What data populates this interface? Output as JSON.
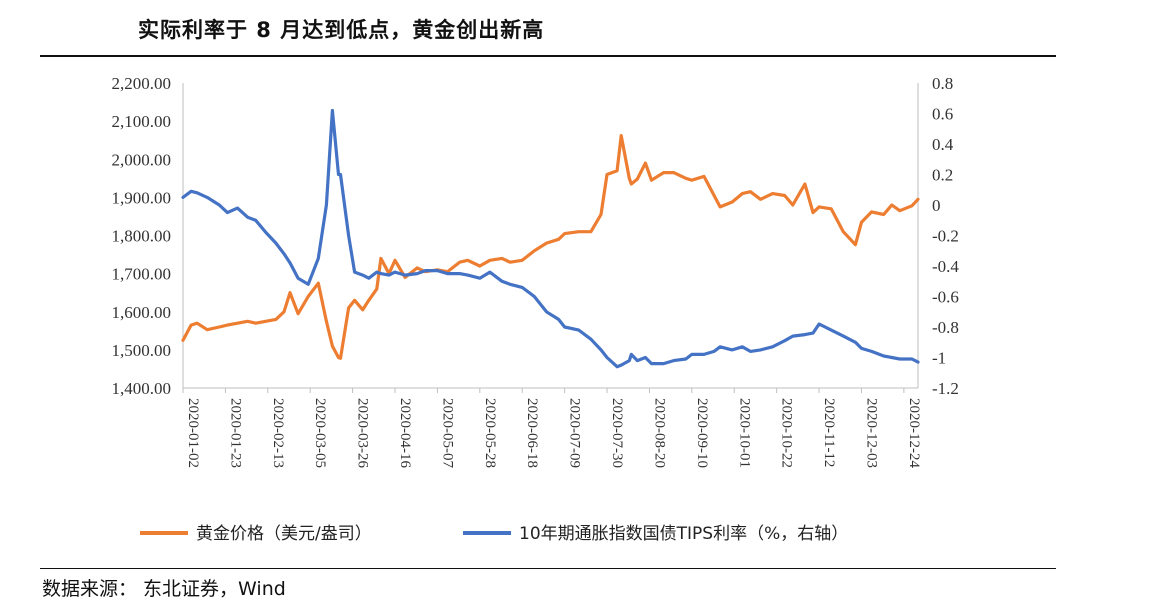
{
  "title": "实际利率于 8 月达到低点，黄金创出新高",
  "source": "数据来源： 东北证券，Wind",
  "chart_data": {
    "type": "line",
    "title": "实际利率于 8 月达到低点，黄金创出新高",
    "grid": false,
    "legend_position": "bottom",
    "x_ticks": [
      "2020-01-02",
      "2020-01-23",
      "2020-02-13",
      "2020-03-05",
      "2020-03-26",
      "2020-04-16",
      "2020-05-07",
      "2020-05-28",
      "2020-06-18",
      "2020-07-09",
      "2020-07-30",
      "2020-08-20",
      "2020-09-10",
      "2020-10-01",
      "2020-10-22",
      "2020-11-12",
      "2020-12-03",
      "2020-12-24"
    ],
    "y_left": {
      "min": 1400,
      "max": 2200,
      "ticks": [
        "1,400.00",
        "1,500.00",
        "1,600.00",
        "1,700.00",
        "1,800.00",
        "1,900.00",
        "2,000.00",
        "2,100.00",
        "2,200.00"
      ]
    },
    "y_right": {
      "min": -1.2,
      "max": 0.8,
      "ticks": [
        "-1.2",
        "-1",
        "-0.8",
        "-0.6",
        "-0.4",
        "-0.2",
        "0",
        "0.2",
        "0.4",
        "0.6",
        "0.8"
      ]
    },
    "series": [
      {
        "name": "黄金价格（美元/盎司）",
        "axis": "left",
        "color": "#ED7D31",
        "x": [
          "2020-01-02",
          "2020-01-06",
          "2020-01-09",
          "2020-01-14",
          "2020-01-20",
          "2020-01-24",
          "2020-01-29",
          "2020-02-03",
          "2020-02-07",
          "2020-02-12",
          "2020-02-17",
          "2020-02-21",
          "2020-02-24",
          "2020-02-28",
          "2020-03-04",
          "2020-03-09",
          "2020-03-13",
          "2020-03-16",
          "2020-03-19",
          "2020-03-20",
          "2020-03-24",
          "2020-03-27",
          "2020-03-31",
          "2020-04-03",
          "2020-04-07",
          "2020-04-09",
          "2020-04-13",
          "2020-04-16",
          "2020-04-21",
          "2020-04-27",
          "2020-05-01",
          "2020-05-07",
          "2020-05-12",
          "2020-05-18",
          "2020-05-22",
          "2020-05-28",
          "2020-06-02",
          "2020-06-08",
          "2020-06-12",
          "2020-06-18",
          "2020-06-24",
          "2020-06-30",
          "2020-07-06",
          "2020-07-09",
          "2020-07-16",
          "2020-07-22",
          "2020-07-27",
          "2020-07-30",
          "2020-08-04",
          "2020-08-06",
          "2020-08-10",
          "2020-08-11",
          "2020-08-14",
          "2020-08-18",
          "2020-08-21",
          "2020-08-27",
          "2020-09-01",
          "2020-09-07",
          "2020-09-10",
          "2020-09-16",
          "2020-09-21",
          "2020-09-24",
          "2020-09-30",
          "2020-10-05",
          "2020-10-09",
          "2020-10-14",
          "2020-10-20",
          "2020-10-26",
          "2020-10-30",
          "2020-11-05",
          "2020-11-09",
          "2020-11-12",
          "2020-11-18",
          "2020-11-24",
          "2020-11-30",
          "2020-12-03",
          "2020-12-08",
          "2020-12-14",
          "2020-12-18",
          "2020-12-22",
          "2020-12-28",
          "2020-12-31"
        ],
        "values": [
          1525,
          1565,
          1570,
          1553,
          1560,
          1565,
          1570,
          1575,
          1570,
          1575,
          1580,
          1600,
          1650,
          1595,
          1640,
          1675,
          1575,
          1510,
          1480,
          1478,
          1610,
          1630,
          1605,
          1630,
          1660,
          1740,
          1700,
          1735,
          1690,
          1715,
          1705,
          1710,
          1705,
          1730,
          1735,
          1720,
          1735,
          1740,
          1730,
          1735,
          1760,
          1780,
          1790,
          1805,
          1810,
          1810,
          1855,
          1960,
          1970,
          2062,
          1950,
          1935,
          1948,
          1990,
          1945,
          1965,
          1965,
          1950,
          1945,
          1955,
          1905,
          1875,
          1888,
          1910,
          1915,
          1895,
          1910,
          1905,
          1880,
          1935,
          1860,
          1875,
          1870,
          1810,
          1776,
          1835,
          1862,
          1855,
          1880,
          1865,
          1878,
          1895
        ]
      },
      {
        "name": "10年期通胀指数国债TIPS利率（%，右轴）",
        "axis": "right",
        "color": "#4472C4",
        "x": [
          "2020-01-02",
          "2020-01-06",
          "2020-01-09",
          "2020-01-14",
          "2020-01-20",
          "2020-01-24",
          "2020-01-29",
          "2020-02-03",
          "2020-02-07",
          "2020-02-12",
          "2020-02-17",
          "2020-02-21",
          "2020-02-24",
          "2020-02-28",
          "2020-03-04",
          "2020-03-09",
          "2020-03-13",
          "2020-03-16",
          "2020-03-19",
          "2020-03-20",
          "2020-03-24",
          "2020-03-27",
          "2020-03-31",
          "2020-04-03",
          "2020-04-07",
          "2020-04-09",
          "2020-04-13",
          "2020-04-16",
          "2020-04-21",
          "2020-04-27",
          "2020-05-01",
          "2020-05-07",
          "2020-05-12",
          "2020-05-18",
          "2020-05-22",
          "2020-05-28",
          "2020-06-02",
          "2020-06-08",
          "2020-06-12",
          "2020-06-18",
          "2020-06-24",
          "2020-06-30",
          "2020-07-06",
          "2020-07-09",
          "2020-07-16",
          "2020-07-22",
          "2020-07-27",
          "2020-07-30",
          "2020-08-04",
          "2020-08-06",
          "2020-08-10",
          "2020-08-11",
          "2020-08-14",
          "2020-08-18",
          "2020-08-21",
          "2020-08-27",
          "2020-09-01",
          "2020-09-07",
          "2020-09-10",
          "2020-09-16",
          "2020-09-21",
          "2020-09-24",
          "2020-09-30",
          "2020-10-05",
          "2020-10-09",
          "2020-10-14",
          "2020-10-20",
          "2020-10-26",
          "2020-10-30",
          "2020-11-05",
          "2020-11-09",
          "2020-11-12",
          "2020-11-18",
          "2020-11-24",
          "2020-11-30",
          "2020-12-03",
          "2020-12-08",
          "2020-12-14",
          "2020-12-18",
          "2020-12-22",
          "2020-12-28",
          "2020-12-31"
        ],
        "values": [
          0.05,
          0.09,
          0.08,
          0.05,
          0.0,
          -0.05,
          -0.02,
          -0.08,
          -0.1,
          -0.18,
          -0.25,
          -0.32,
          -0.38,
          -0.48,
          -0.52,
          -0.35,
          0.0,
          0.62,
          0.2,
          0.2,
          -0.2,
          -0.44,
          -0.46,
          -0.48,
          -0.44,
          -0.45,
          -0.46,
          -0.44,
          -0.46,
          -0.45,
          -0.43,
          -0.43,
          -0.45,
          -0.45,
          -0.46,
          -0.48,
          -0.44,
          -0.5,
          -0.52,
          -0.54,
          -0.6,
          -0.7,
          -0.75,
          -0.8,
          -0.82,
          -0.88,
          -0.95,
          -1.0,
          -1.06,
          -1.05,
          -1.02,
          -0.98,
          -1.02,
          -1.0,
          -1.04,
          -1.04,
          -1.02,
          -1.01,
          -0.98,
          -0.98,
          -0.96,
          -0.93,
          -0.95,
          -0.93,
          -0.96,
          -0.95,
          -0.93,
          -0.89,
          -0.86,
          -0.85,
          -0.84,
          -0.78,
          -0.82,
          -0.86,
          -0.9,
          -0.94,
          -0.96,
          -0.99,
          -1.0,
          -1.01,
          -1.01,
          -1.03
        ]
      }
    ]
  }
}
